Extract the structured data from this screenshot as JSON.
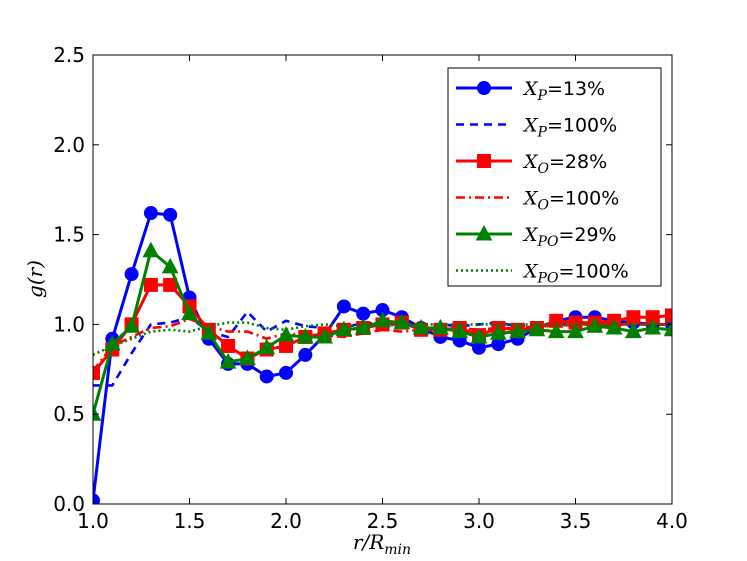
{
  "chart_data": {
    "type": "line",
    "title": "",
    "xlabel": "r/R_min",
    "ylabel": "g(r)",
    "xlim": [
      1.0,
      4.0
    ],
    "ylim": [
      0.0,
      2.5
    ],
    "xticks": [
      "1.0",
      "1.5",
      "2.0",
      "2.5",
      "3.0",
      "3.5",
      "4.0"
    ],
    "yticks": [
      "0.0",
      "0.5",
      "1.0",
      "1.5",
      "2.0",
      "2.5"
    ],
    "legend_position": "top-right",
    "series": [
      {
        "name": "X_P=13%",
        "legend_main": "X",
        "legend_sub": "P",
        "legend_tail": "=13%",
        "color": "#0000ff",
        "style": "solid",
        "marker": "circle",
        "x": [
          1.0,
          1.1,
          1.2,
          1.3,
          1.4,
          1.5,
          1.6,
          1.7,
          1.8,
          1.9,
          2.0,
          2.1,
          2.2,
          2.3,
          2.4,
          2.5,
          2.6,
          2.7,
          2.8,
          2.9,
          3.0,
          3.1,
          3.2,
          3.3,
          3.4,
          3.5,
          3.6,
          3.7,
          3.8,
          3.9,
          4.0
        ],
        "y": [
          0.02,
          0.92,
          1.28,
          1.62,
          1.61,
          1.15,
          0.92,
          0.78,
          0.78,
          0.71,
          0.73,
          0.83,
          0.94,
          1.1,
          1.06,
          1.08,
          1.04,
          0.98,
          0.93,
          0.91,
          0.87,
          0.89,
          0.92,
          0.98,
          1.02,
          1.04,
          1.04,
          1.02,
          1.01,
          1.0,
          1.0
        ]
      },
      {
        "name": "X_P=100%",
        "legend_main": "X",
        "legend_sub": "P",
        "legend_tail": "=100%",
        "color": "#0000ff",
        "style": "dashed",
        "marker": "none",
        "x": [
          1.0,
          1.1,
          1.2,
          1.3,
          1.4,
          1.5,
          1.6,
          1.7,
          1.8,
          1.9,
          2.0,
          2.1,
          2.2,
          2.3,
          2.4,
          2.5,
          2.6,
          2.7,
          2.8,
          2.9,
          3.0,
          3.1,
          3.2,
          3.3,
          3.4,
          3.5,
          3.6,
          3.7,
          3.8,
          3.9,
          4.0
        ],
        "y": [
          0.66,
          0.66,
          0.84,
          1.0,
          1.01,
          1.04,
          0.96,
          0.93,
          1.07,
          0.96,
          1.02,
          0.99,
          0.98,
          0.98,
          1.01,
          1.0,
          1.0,
          0.99,
          1.0,
          0.99,
          1.0,
          1.01,
          0.99,
          1.0,
          1.0,
          1.0,
          0.99,
          1.0,
          1.0,
          1.0,
          1.0
        ]
      },
      {
        "name": "X_O=28%",
        "legend_main": "X",
        "legend_sub": "O",
        "legend_tail": "=28%",
        "color": "#ff0000",
        "style": "solid",
        "marker": "square",
        "x": [
          1.0,
          1.1,
          1.2,
          1.3,
          1.4,
          1.5,
          1.6,
          1.7,
          1.8,
          1.9,
          2.0,
          2.1,
          2.2,
          2.3,
          2.4,
          2.5,
          2.6,
          2.7,
          2.8,
          2.9,
          3.0,
          3.1,
          3.2,
          3.3,
          3.4,
          3.5,
          3.6,
          3.7,
          3.8,
          3.9,
          4.0
        ],
        "y": [
          0.73,
          0.86,
          1.0,
          1.22,
          1.22,
          1.1,
          0.97,
          0.88,
          0.81,
          0.86,
          0.88,
          0.93,
          0.95,
          0.97,
          0.98,
          1.0,
          1.01,
          0.97,
          0.97,
          0.98,
          0.94,
          0.98,
          0.97,
          0.98,
          1.02,
          1.01,
          1.01,
          1.02,
          1.04,
          1.04,
          1.05
        ]
      },
      {
        "name": "X_O=100%",
        "legend_main": "X",
        "legend_sub": "O",
        "legend_tail": "=100%",
        "color": "#ff0000",
        "style": "dashdot",
        "marker": "none",
        "x": [
          1.0,
          1.1,
          1.2,
          1.3,
          1.4,
          1.5,
          1.6,
          1.7,
          1.8,
          1.9,
          2.0,
          2.1,
          2.2,
          2.3,
          2.4,
          2.5,
          2.6,
          2.7,
          2.8,
          2.9,
          3.0,
          3.1,
          3.2,
          3.3,
          3.4,
          3.5,
          3.6,
          3.7,
          3.8,
          3.9,
          4.0
        ],
        "y": [
          0.74,
          0.88,
          0.93,
          0.98,
          0.99,
          1.03,
          0.99,
          0.96,
          0.96,
          0.92,
          0.95,
          0.94,
          0.94,
          0.93,
          0.95,
          0.97,
          0.96,
          0.97,
          0.97,
          0.98,
          0.97,
          0.98,
          0.98,
          0.99,
          0.99,
          1.0,
          1.0,
          1.0,
          1.0,
          1.0,
          1.0
        ]
      },
      {
        "name": "X_PO=29%",
        "legend_main": "X",
        "legend_sub": "PO",
        "legend_tail": "=29%",
        "color": "#008000",
        "style": "solid",
        "marker": "triangle",
        "x": [
          1.0,
          1.1,
          1.2,
          1.3,
          1.4,
          1.5,
          1.6,
          1.7,
          1.8,
          1.9,
          2.0,
          2.1,
          2.2,
          2.3,
          2.4,
          2.5,
          2.6,
          2.7,
          2.8,
          2.9,
          3.0,
          3.1,
          3.2,
          3.3,
          3.4,
          3.5,
          3.6,
          3.7,
          3.8,
          3.9,
          4.0
        ],
        "y": [
          0.5,
          0.89,
          0.99,
          1.41,
          1.32,
          1.06,
          0.95,
          0.79,
          0.81,
          0.87,
          0.94,
          0.93,
          0.93,
          0.97,
          0.98,
          1.02,
          1.01,
          0.98,
          0.98,
          0.96,
          0.93,
          0.95,
          0.96,
          0.97,
          0.96,
          0.96,
          0.99,
          0.98,
          0.96,
          0.98,
          0.97
        ]
      },
      {
        "name": "X_PO=100%",
        "legend_main": "X",
        "legend_sub": "PO",
        "legend_tail": "=100%",
        "color": "#008000",
        "style": "dotted",
        "marker": "none",
        "x": [
          1.0,
          1.1,
          1.2,
          1.3,
          1.4,
          1.5,
          1.6,
          1.7,
          1.8,
          1.9,
          2.0,
          2.1,
          2.2,
          2.3,
          2.4,
          2.5,
          2.6,
          2.7,
          2.8,
          2.9,
          3.0,
          3.1,
          3.2,
          3.3,
          3.4,
          3.5,
          3.6,
          3.7,
          3.8,
          3.9,
          4.0
        ],
        "y": [
          0.83,
          0.88,
          0.92,
          0.96,
          0.97,
          0.96,
          0.99,
          1.01,
          1.01,
          0.98,
          0.97,
          0.99,
          1.0,
          0.99,
          1.0,
          1.0,
          0.99,
          1.0,
          1.0,
          1.0,
          1.0,
          1.0,
          1.0,
          1.0,
          1.0,
          1.0,
          1.0,
          1.0,
          1.0,
          1.0,
          1.0
        ]
      }
    ]
  }
}
